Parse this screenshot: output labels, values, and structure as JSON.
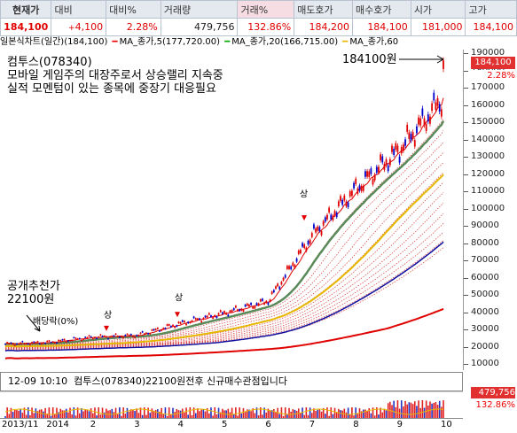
{
  "quote": {
    "headers": [
      "현재가",
      "대비",
      "대비%",
      "거래량",
      "거래%",
      "매도호가",
      "매수호가",
      "시가",
      "고가"
    ],
    "values": [
      "184,100",
      "4,100",
      "2.28%",
      "479,756",
      "132.86%",
      "184,200",
      "184,100",
      "181,000",
      "184,100"
    ]
  },
  "legend": {
    "chart": "일본식차트(일간)(184,100)",
    "ma5": "MA_종가,5(177,720.00)",
    "ma20": "MA_종가,20(166,715.00)",
    "ma60": "MA_종가,60"
  },
  "annotations": {
    "line1": "컴투스(078340)",
    "line2": "모바일 게임주의 대장주로서 상승랠리 지속중",
    "line3": "실적 모멘텀이 있는 종목에 중장기 대응필요",
    "target": "184100원",
    "rec1": "공개추천가",
    "rec2": "22100원",
    "dividend": "배당락(0%)",
    "up_mark": "상"
  },
  "price_axis": {
    "ticks": [
      "190000",
      "180000",
      "170000",
      "160000",
      "150000",
      "140000",
      "130000",
      "120000",
      "110000",
      "100000",
      "90000",
      "80000",
      "70000",
      "60000",
      "50000",
      "40000",
      "30000",
      "20000",
      "10000"
    ],
    "current": "184,100",
    "pct": "2.28%"
  },
  "ticker": {
    "time": "12-09 10:10",
    "message": "컴투스(078340)22100원전후 신규매수관점입니다"
  },
  "volume": {
    "current": "479,756",
    "pct": "132.86%"
  },
  "x_axis": [
    "2013/11",
    "2014",
    "2",
    "3",
    "4",
    "5",
    "6",
    "7",
    "8",
    "9",
    "10"
  ],
  "chart_data": {
    "type": "candlestick",
    "x": [
      "2013/11",
      "2014",
      "2",
      "3",
      "4",
      "5",
      "6",
      "7",
      "8",
      "9",
      "10"
    ],
    "close": [
      22000,
      23000,
      26000,
      27000,
      34000,
      40000,
      47000,
      85000,
      112000,
      135000,
      165000
    ],
    "current_price": 184100,
    "recommended_price": 22100,
    "ylim": [
      10000,
      190000
    ]
  },
  "colors": {
    "up": "#e00000",
    "down": "#0000cc",
    "ma5": "#e00000",
    "ma20": "#00a000",
    "ma60": "#e6b800"
  }
}
